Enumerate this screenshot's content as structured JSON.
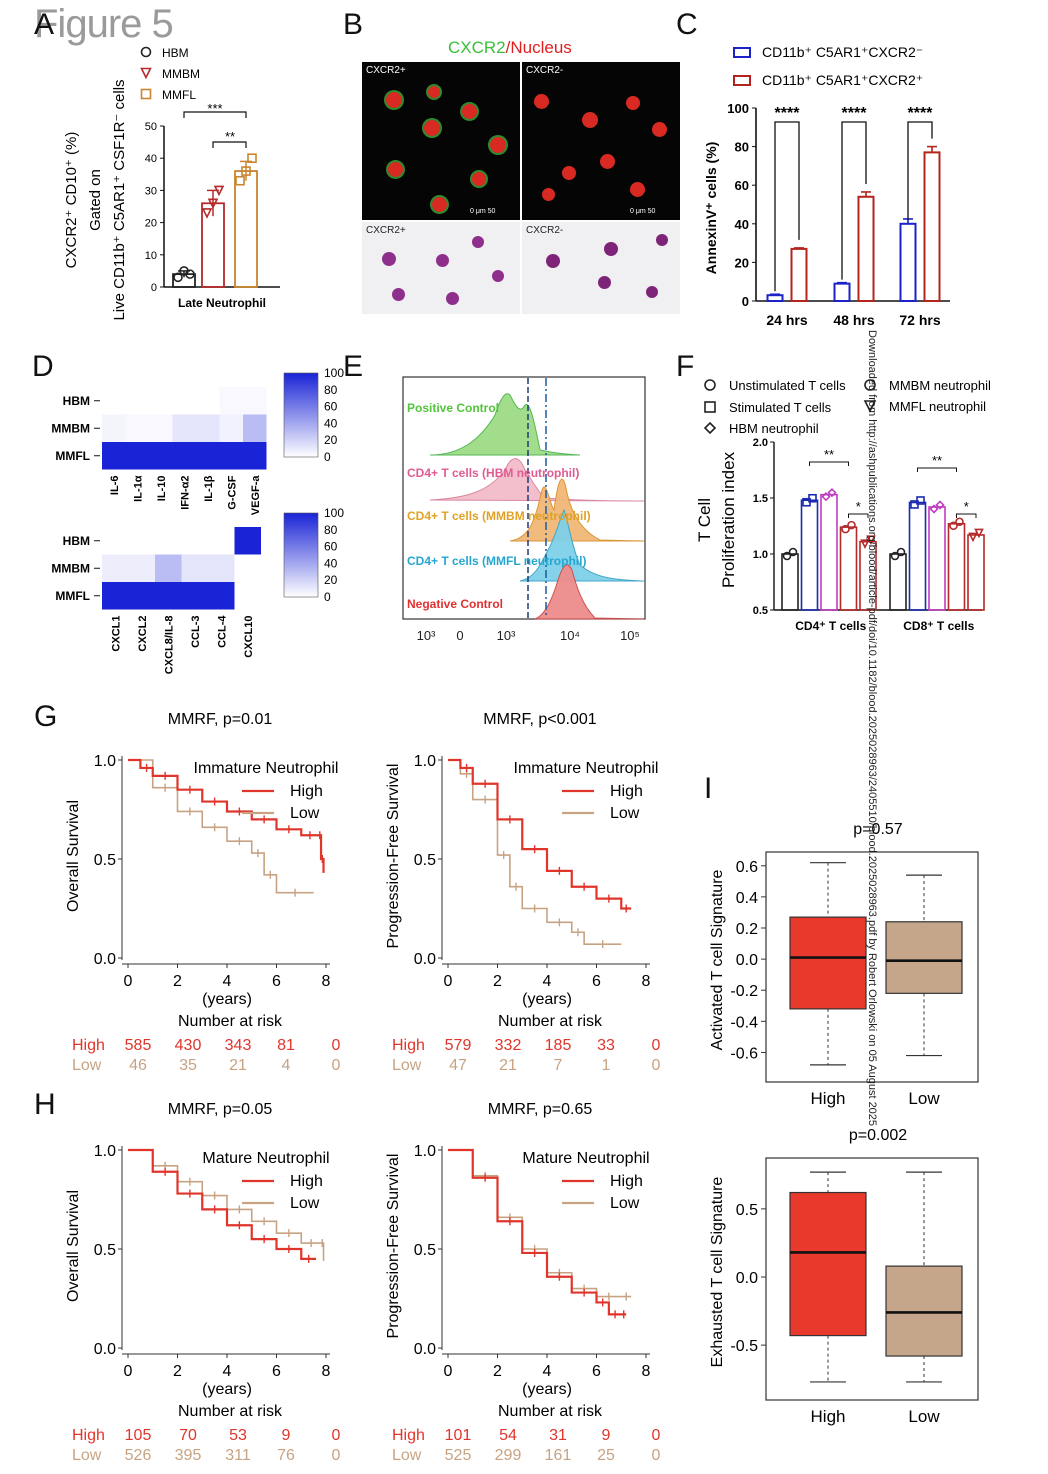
{
  "figure_title": "Figure 5",
  "side_text": "Downloaded from http://ashpublications.org/blood/article-pdf/doi/10.1182/blood.2025028963/2405510/blood.2025028963.pdf by Robert Orlowski on 05 August 2025",
  "panel_letters": [
    "A",
    "B",
    "C",
    "D",
    "E",
    "F",
    "G",
    "H",
    "I"
  ],
  "colors": {
    "hbm": "#222222",
    "mmbm": "#b52a2a",
    "mmfl": "#c9852f",
    "blue": "#1a22c8",
    "red": "#b3241d",
    "km_high": "#e0352b",
    "km_low": "#c7a383",
    "box_high": "#e8392c",
    "box_low": "#c6a68a",
    "heat_max": "#1a24d6"
  },
  "panelB": {
    "title_green": "CXCR2",
    "title_sep": "/",
    "title_red": "Nucleus",
    "quadrants": [
      "CXCR2+",
      "CXCR2-",
      "CXCR2+",
      "CXCR2-"
    ],
    "scale_text": "0   μm   50"
  },
  "panelE": {
    "labels": [
      "Positive Control",
      "CD4+ T cells (HBM neutrophil)",
      "CD4+ T cells (MMBM neutrophil)",
      "CD4+ T cells (MMFL neutrophil)",
      "Negative Control"
    ],
    "xticks": [
      "10³",
      "0",
      "10³",
      "10⁴",
      "10⁵"
    ]
  },
  "chart_data": [
    {
      "panel": "A",
      "type": "bar",
      "categories": [
        "HBM",
        "MMBM",
        "MMFL"
      ],
      "values": [
        4,
        26,
        36
      ],
      "errors": [
        1,
        4,
        3
      ],
      "points": [
        [
          3,
          5,
          4
        ],
        [
          23,
          26,
          30
        ],
        [
          33,
          36,
          40
        ]
      ],
      "markers": [
        "circle",
        "triangle-down",
        "square"
      ],
      "ylabel_lines": [
        "CXCR2⁺ CD10⁺ (%)",
        "Gated on",
        "Live CD11b⁺ C5AR1⁺ CSF1R⁻ cells"
      ],
      "xlabel": "Late Neutrophil",
      "ylim": [
        0,
        50
      ],
      "yticks": [
        "0",
        "10",
        "20",
        "30",
        "40",
        "50"
      ],
      "legend": [
        "HBM",
        "MMBM",
        "MMFL"
      ],
      "significance": [
        "***",
        "**"
      ]
    },
    {
      "panel": "C",
      "type": "bar",
      "categories": [
        "24 hrs",
        "48 hrs",
        "72 hrs"
      ],
      "series": [
        {
          "name": "CD11b⁺ C5AR1⁺CXCR2⁻",
          "values": [
            3,
            9,
            40
          ],
          "errors": [
            0.5,
            0.5,
            2.5
          ]
        },
        {
          "name": "CD11b⁺ C5AR1⁺CXCR2⁺",
          "values": [
            27,
            54,
            77
          ],
          "errors": [
            0.5,
            2.5,
            3
          ]
        }
      ],
      "ylabel": "AnnexinV⁺ cells (%)",
      "ylim": [
        0,
        100
      ],
      "yticks": [
        "0",
        "20",
        "40",
        "60",
        "80",
        "100"
      ],
      "significance": [
        "****",
        "****",
        "****"
      ]
    },
    {
      "panel": "D-top",
      "type": "heatmap",
      "rows": [
        "HBM",
        "MMBM",
        "MMFL"
      ],
      "columns": [
        "IL-6",
        "IL-1α",
        "IL-10",
        "IFN-α2",
        "IL-1β",
        "G-CSF",
        "VEGF-a"
      ],
      "values": [
        [
          0,
          0,
          0,
          0,
          0,
          3,
          3
        ],
        [
          5,
          3,
          3,
          12,
          12,
          6,
          30
        ],
        [
          100,
          100,
          100,
          100,
          100,
          100,
          100
        ]
      ],
      "scale": [
        0,
        100
      ],
      "scale_ticks": [
        "100",
        "80",
        "60",
        "40",
        "20",
        "0"
      ]
    },
    {
      "panel": "D-bottom",
      "type": "heatmap",
      "rows": [
        "HBM",
        "MMBM",
        "MMFL"
      ],
      "columns": [
        "CXCL1",
        "CXCL2",
        "CXCL8/IL-8",
        "CCL-3",
        "CCL-4",
        "CXCL10"
      ],
      "values": [
        [
          0,
          0,
          0,
          0,
          0,
          100
        ],
        [
          8,
          8,
          30,
          12,
          12,
          0
        ],
        [
          100,
          100,
          100,
          100,
          100,
          0
        ]
      ],
      "scale": [
        0,
        100
      ],
      "scale_ticks": [
        "100",
        "80",
        "60",
        "40",
        "20",
        "0"
      ]
    },
    {
      "panel": "F",
      "type": "bar",
      "groups": [
        "CD4⁺ T cells",
        "CD8⁺ T cells"
      ],
      "series": [
        {
          "name": "Unstimulated T cells",
          "values": [
            1.0,
            1.0
          ]
        },
        {
          "name": "Stimulated T cells",
          "values": [
            1.48,
            1.46
          ]
        },
        {
          "name": "HBM neutrophil",
          "values": [
            1.53,
            1.42
          ]
        },
        {
          "name": "MMBM neutrophil",
          "values": [
            1.24,
            1.27
          ]
        },
        {
          "name": "MMFL neutrophil",
          "values": [
            1.11,
            1.17
          ]
        }
      ],
      "ylabel_lines": [
        "T Cell",
        "Proliferation index"
      ],
      "ylim": [
        0.5,
        2.0
      ],
      "yticks": [
        "0.5",
        "1.0",
        "1.5",
        "2.0"
      ],
      "significance": [
        "**",
        "*",
        "**",
        "*"
      ]
    },
    {
      "panel": "G-left",
      "type": "line",
      "title": "MMRF, p=0.01",
      "subtitle": "Immature Neutrophil",
      "series": [
        {
          "name": "High",
          "x": [
            0,
            0.5,
            1,
            2,
            3,
            4,
            5,
            6,
            7,
            7.7,
            7.8,
            7.9
          ],
          "y": [
            1.0,
            0.96,
            0.92,
            0.85,
            0.79,
            0.74,
            0.7,
            0.65,
            0.62,
            0.62,
            0.5,
            0.43
          ]
        },
        {
          "name": "Low",
          "x": [
            0,
            1,
            2,
            3,
            4,
            5,
            5.5,
            6,
            7.5
          ],
          "y": [
            1.0,
            0.86,
            0.74,
            0.66,
            0.59,
            0.53,
            0.42,
            0.33,
            0.33
          ]
        }
      ],
      "xlabel": "(years)",
      "ylabel": "Overall Survival",
      "xticks": [
        "0",
        "2",
        "4",
        "6",
        "8"
      ],
      "yticks": [
        "0.0",
        "0.5",
        "1.0"
      ],
      "xlim": [
        0,
        8
      ],
      "ylim": [
        0,
        1
      ],
      "risk_title": "Number at risk",
      "risk": {
        "High": [
          "585",
          "430",
          "343",
          "81",
          "0"
        ],
        "Low": [
          "46",
          "35",
          "21",
          "4",
          "0"
        ]
      }
    },
    {
      "panel": "G-right",
      "type": "line",
      "title": "MMRF, p<0.001",
      "subtitle": "Immature Neutrophil",
      "series": [
        {
          "name": "High",
          "x": [
            0,
            0.5,
            1,
            2,
            3,
            4,
            5,
            6,
            7,
            7.4
          ],
          "y": [
            1.0,
            0.96,
            0.88,
            0.7,
            0.55,
            0.44,
            0.36,
            0.3,
            0.25,
            0.25
          ]
        },
        {
          "name": "Low",
          "x": [
            0,
            0.5,
            1,
            2,
            2.5,
            3,
            4,
            5,
            5.5,
            7
          ],
          "y": [
            1.0,
            0.93,
            0.8,
            0.52,
            0.36,
            0.25,
            0.18,
            0.13,
            0.07,
            0.07
          ]
        }
      ],
      "xlabel": "(years)",
      "ylabel": "Progression-Free Survival",
      "xticks": [
        "0",
        "2",
        "4",
        "6",
        "8"
      ],
      "yticks": [
        "0.0",
        "0.5",
        "1.0"
      ],
      "xlim": [
        0,
        8
      ],
      "ylim": [
        0,
        1
      ],
      "risk_title": "Number at risk",
      "risk": {
        "High": [
          "579",
          "332",
          "185",
          "33",
          "0"
        ],
        "Low": [
          "47",
          "21",
          "7",
          "1",
          "0"
        ]
      }
    },
    {
      "panel": "H-left",
      "type": "line",
      "title": "MMRF, p=0.05",
      "subtitle": "Mature Neutrophil",
      "series": [
        {
          "name": "High",
          "x": [
            0,
            1,
            2,
            3,
            4,
            5,
            6,
            7,
            7.6
          ],
          "y": [
            1.0,
            0.89,
            0.78,
            0.7,
            0.62,
            0.55,
            0.5,
            0.45,
            0.45
          ]
        },
        {
          "name": "Low",
          "x": [
            0,
            1,
            2,
            3,
            4,
            5,
            6,
            7,
            7.8,
            7.9
          ],
          "y": [
            1.0,
            0.92,
            0.84,
            0.77,
            0.7,
            0.64,
            0.58,
            0.53,
            0.53,
            0.44
          ]
        }
      ],
      "xlabel": "(years)",
      "ylabel": "Overall Survival",
      "xticks": [
        "0",
        "2",
        "4",
        "6",
        "8"
      ],
      "yticks": [
        "0.0",
        "0.5",
        "1.0"
      ],
      "xlim": [
        0,
        8
      ],
      "ylim": [
        0,
        1
      ],
      "risk_title": "Number at risk",
      "risk": {
        "High": [
          "105",
          "70",
          "53",
          "9",
          "0"
        ],
        "Low": [
          "526",
          "395",
          "311",
          "76",
          "0"
        ]
      }
    },
    {
      "panel": "H-right",
      "type": "line",
      "title": "MMRF, p=0.65",
      "subtitle": "Mature Neutrophil",
      "series": [
        {
          "name": "High",
          "x": [
            0,
            1,
            2,
            3,
            4,
            5,
            6,
            6.5,
            7,
            7.2
          ],
          "y": [
            1.0,
            0.86,
            0.64,
            0.48,
            0.36,
            0.28,
            0.23,
            0.17,
            0.17,
            0.17
          ]
        },
        {
          "name": "Low",
          "x": [
            0,
            1,
            2,
            3,
            4,
            5,
            6,
            7,
            7.4
          ],
          "y": [
            1.0,
            0.87,
            0.66,
            0.5,
            0.38,
            0.3,
            0.26,
            0.26,
            0.26
          ]
        }
      ],
      "xlabel": "(years)",
      "ylabel": "Progression-Free Survival",
      "xticks": [
        "0",
        "2",
        "4",
        "6",
        "8"
      ],
      "yticks": [
        "0.0",
        "0.5",
        "1.0"
      ],
      "xlim": [
        0,
        8
      ],
      "ylim": [
        0,
        1
      ],
      "risk_title": "Number at risk",
      "risk": {
        "High": [
          "101",
          "54",
          "31",
          "9",
          "0"
        ],
        "Low": [
          "525",
          "299",
          "161",
          "25",
          "0"
        ]
      }
    },
    {
      "panel": "I-top",
      "type": "box",
      "title": "p=0.57",
      "categories": [
        "High",
        "Low"
      ],
      "boxes": [
        {
          "whisker_low": -0.68,
          "q1": -0.32,
          "median": 0.01,
          "q3": 0.27,
          "whisker_high": 0.62
        },
        {
          "whisker_low": -0.62,
          "q1": -0.22,
          "median": -0.01,
          "q3": 0.24,
          "whisker_high": 0.54
        }
      ],
      "ylabel": "Activated T cell Signature",
      "ylim": [
        -0.7,
        0.65
      ],
      "yticks": [
        "-0.6",
        "-0.4",
        "-0.2",
        "0.0",
        "0.2",
        "0.4",
        "0.6"
      ]
    },
    {
      "panel": "I-bottom",
      "type": "box",
      "title": "p=0.002",
      "categories": [
        "High",
        "Low"
      ],
      "boxes": [
        {
          "whisker_low": -0.77,
          "q1": -0.43,
          "median": 0.18,
          "q3": 0.62,
          "whisker_high": 0.77
        },
        {
          "whisker_low": -0.77,
          "q1": -0.58,
          "median": -0.26,
          "q3": 0.08,
          "whisker_high": 0.77
        }
      ],
      "ylabel": "Exhausted T cell Signature",
      "ylim": [
        -0.8,
        0.8
      ],
      "yticks": [
        "-0.5",
        "0.0",
        "0.5"
      ]
    }
  ]
}
